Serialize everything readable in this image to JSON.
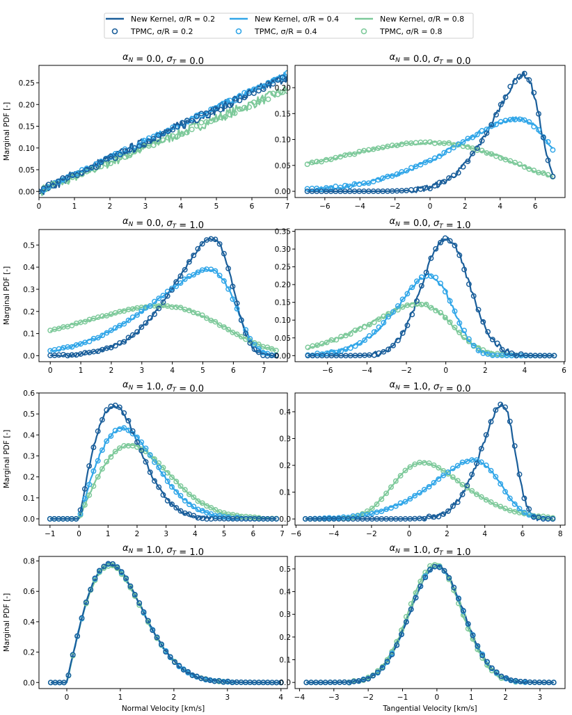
{
  "figure": {
    "colors": {
      "s02": "#1a5e9a",
      "s04": "#31a6e8",
      "s08": "#7dc99a"
    }
  },
  "legend": {
    "entries": [
      {
        "label": "New Kernel, σ/R = 0.2",
        "kind": "line",
        "series": "s02"
      },
      {
        "label": "TPMC, σ/R = 0.2",
        "kind": "marker",
        "series": "s02"
      },
      {
        "label": "New Kernel, σ/R = 0.4",
        "kind": "line",
        "series": "s04"
      },
      {
        "label": "TPMC, σ/R = 0.4",
        "kind": "marker",
        "series": "s04"
      },
      {
        "label": "New Kernel, σ/R = 0.8",
        "kind": "line",
        "series": "s08"
      },
      {
        "label": "TPMC, σ/R = 0.8",
        "kind": "marker",
        "series": "s08"
      }
    ]
  },
  "chart_data": [
    {
      "type": "line",
      "title": "αN = 0.0, σT = 0.0",
      "xlabel": "",
      "ylabel": "Marginal PDF [-]",
      "xlim": [
        0,
        7
      ],
      "ylim": [
        -0.014,
        0.29
      ],
      "xticks": [
        0,
        1,
        2,
        3,
        4,
        5,
        6,
        7
      ],
      "yticks": [
        0,
        0.05,
        0.1,
        0.15,
        0.2,
        0.25
      ],
      "ytick_decimals": 2,
      "curve": {
        "kind": "ramp",
        "xmin": 0,
        "xmax": 7,
        "series": [
          {
            "name": "s02",
            "end": 0.265,
            "noise": 0.012
          },
          {
            "name": "s04",
            "end": 0.27,
            "noise": 0.008
          },
          {
            "name": "s08",
            "end": 0.235,
            "noise": 0.012
          }
        ]
      }
    },
    {
      "type": "line",
      "title": "αN = 0.0, σT = 0.0",
      "xlabel": "",
      "ylabel": "",
      "xlim": [
        -7.7,
        7.7
      ],
      "ylim": [
        -0.012,
        0.243
      ],
      "xticks": [
        -6,
        -4,
        -2,
        0,
        2,
        4,
        6
      ],
      "yticks": [
        0,
        0.05,
        0.1,
        0.15,
        0.2
      ],
      "ytick_decimals": 2,
      "curve": {
        "kind": "skewnorm",
        "xmin": -7,
        "xmax": 7,
        "series": [
          {
            "name": "s02",
            "mu": 6.3,
            "sigma": 2.4,
            "alpha": -4,
            "peak": 0.225,
            "noise": 0.006
          },
          {
            "name": "s04",
            "mu": 7.0,
            "sigma": 5.0,
            "alpha": -4,
            "peak": 0.14,
            "noise": 0.004
          },
          {
            "name": "s08",
            "mu": 4.5,
            "sigma": 9.0,
            "alpha": -2.5,
            "peak": 0.094,
            "noise": 0.003
          }
        ]
      }
    },
    {
      "type": "line",
      "title": "αN = 0.0, σT = 1.0",
      "xlabel": "",
      "ylabel": "Marginal PDF [-]",
      "xlim": [
        -0.37,
        7.77
      ],
      "ylim": [
        -0.027,
        0.57
      ],
      "xticks": [
        0,
        1,
        2,
        3,
        4,
        5,
        6,
        7
      ],
      "yticks": [
        0,
        0.1,
        0.2,
        0.3,
        0.4,
        0.5
      ],
      "ytick_decimals": 1,
      "curve": {
        "kind": "skewnorm",
        "xmin": 0,
        "xmax": 7.4,
        "series": [
          {
            "name": "s02",
            "mu": 6.0,
            "sigma": 1.7,
            "alpha": -4,
            "peak": 0.53,
            "noise": 0.008
          },
          {
            "name": "s04",
            "mu": 6.1,
            "sigma": 2.5,
            "alpha": -5,
            "peak": 0.39,
            "noise": 0.006
          },
          {
            "name": "s08",
            "mu": 5.6,
            "sigma": 4.2,
            "alpha": -3,
            "peak": 0.225,
            "noise": 0.005
          }
        ]
      }
    },
    {
      "type": "line",
      "title": "αN = 0.0, σT = 1.0",
      "xlabel": "",
      "ylabel": "",
      "xlim": [
        -7.65,
        6.05
      ],
      "ylim": [
        -0.017,
        0.355
      ],
      "xticks": [
        -6,
        -4,
        -2,
        0,
        2,
        4,
        6
      ],
      "yticks": [
        0,
        0.05,
        0.1,
        0.15,
        0.2,
        0.25,
        0.3,
        0.35
      ],
      "ytick_decimals": 2,
      "curve": {
        "kind": "skewnorm",
        "xmin": -7,
        "xmax": 5.5,
        "series": [
          {
            "name": "s02",
            "mu": 0,
            "sigma": 1.2,
            "alpha": 0,
            "peak": 0.33,
            "noise": 0.008
          },
          {
            "name": "s04",
            "mu": 0.3,
            "sigma": 2.3,
            "alpha": -2.5,
            "peak": 0.225,
            "noise": 0.006
          },
          {
            "name": "s08",
            "mu": 0.3,
            "sigma": 3.6,
            "alpha": -3,
            "peak": 0.145,
            "noise": 0.006
          }
        ]
      }
    },
    {
      "type": "line",
      "title": "αN = 1.0, σT = 0.0",
      "xlabel": "",
      "ylabel": "Marginal PDF [-]",
      "xlim": [
        -1.38,
        7.18
      ],
      "ylim": [
        -0.03,
        0.6
      ],
      "xticks": [
        -1,
        0,
        1,
        2,
        3,
        4,
        5,
        6,
        7
      ],
      "yticks": [
        0,
        0.1,
        0.2,
        0.3,
        0.4,
        0.5,
        0.6
      ],
      "ytick_decimals": 1,
      "curve": {
        "kind": "rayleigh",
        "xmin": -1,
        "xmax": 6.8,
        "series": [
          {
            "name": "s02",
            "scale": 1.2,
            "peak": 0.54,
            "noise": 0.01
          },
          {
            "name": "s04",
            "scale": 1.5,
            "peak": 0.43,
            "noise": 0.008
          },
          {
            "name": "s08",
            "scale": 1.75,
            "peak": 0.35,
            "noise": 0.005
          }
        ]
      }
    },
    {
      "type": "line",
      "title": "αN = 1.0, σT = 0.0",
      "xlabel": "",
      "ylabel": "",
      "xlim": [
        -6.05,
        8.25
      ],
      "ylim": [
        -0.023,
        0.47
      ],
      "xticks": [
        -6,
        -4,
        -2,
        0,
        2,
        4,
        6,
        8
      ],
      "yticks": [
        0,
        0.1,
        0.2,
        0.3,
        0.4
      ],
      "ytick_decimals": 1,
      "curve": {
        "kind": "skewnorm",
        "xmin": -5.5,
        "xmax": 7.6,
        "series": [
          {
            "name": "s02",
            "mu": 5.6,
            "sigma": 1.5,
            "alpha": -3,
            "peak": 0.43,
            "noise": 0.01
          },
          {
            "name": "s04",
            "mu": 4.8,
            "sigma": 3.0,
            "alpha": -3,
            "peak": 0.22,
            "noise": 0.004
          },
          {
            "name": "s08",
            "mu": -0.8,
            "sigma": 3.0,
            "alpha": 2.5,
            "peak": 0.21,
            "noise": 0.003
          }
        ]
      }
    },
    {
      "type": "line",
      "title": "αN = 1.0, σT = 1.0",
      "xlabel": "Normal Velocity [km/s]",
      "ylabel": "Marginal PDF [-]",
      "xlim": [
        -0.52,
        4.12
      ],
      "ylim": [
        -0.04,
        0.83
      ],
      "xticks": [
        0,
        1,
        2,
        3,
        4
      ],
      "yticks": [
        0,
        0.2,
        0.4,
        0.6,
        0.8
      ],
      "ytick_decimals": 1,
      "curve": {
        "kind": "rayleigh",
        "xmin": -0.3,
        "xmax": 4.0,
        "series": [
          {
            "name": "s02",
            "scale": 0.8,
            "peak": 0.78,
            "noise": 0.008
          },
          {
            "name": "s04",
            "scale": 0.8,
            "peak": 0.78,
            "noise": 0.008
          },
          {
            "name": "s08",
            "scale": 0.8,
            "peak": 0.77,
            "noise": 0.008
          }
        ]
      }
    },
    {
      "type": "line",
      "title": "αN = 1.0, σT = 1.0",
      "xlabel": "Tangential Velocity [km/s]",
      "ylabel": "",
      "xlim": [
        -4.13,
        3.73
      ],
      "ylim": [
        -0.027,
        0.555
      ],
      "xticks": [
        -4,
        -3,
        -2,
        -1,
        0,
        1,
        2,
        3
      ],
      "yticks": [
        0,
        0.1,
        0.2,
        0.3,
        0.4,
        0.5
      ],
      "ytick_decimals": 1,
      "curve": {
        "kind": "skewnorm",
        "xmin": -3.8,
        "xmax": 3.4,
        "series": [
          {
            "name": "s02",
            "mu": 0,
            "sigma": 0.78,
            "alpha": 0,
            "peak": 0.51,
            "noise": 0.006
          },
          {
            "name": "s04",
            "mu": 0,
            "sigma": 0.78,
            "alpha": 0,
            "peak": 0.51,
            "noise": 0.006
          },
          {
            "name": "s08",
            "mu": -0.05,
            "sigma": 0.77,
            "alpha": 0,
            "peak": 0.52,
            "noise": 0.008
          }
        ]
      }
    }
  ]
}
